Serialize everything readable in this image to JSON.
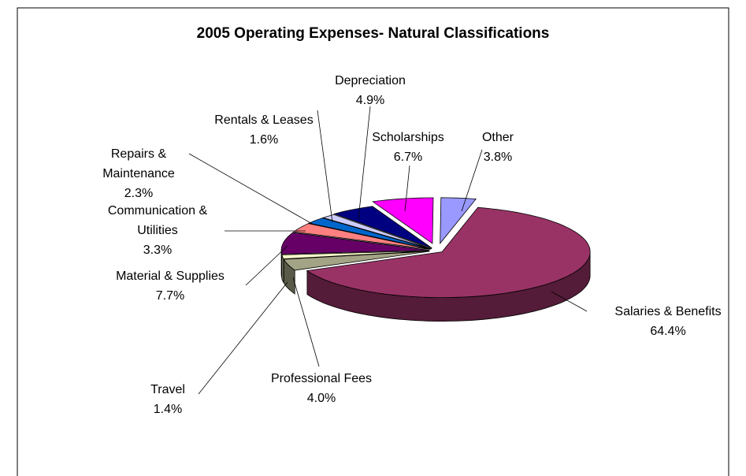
{
  "chart_data": {
    "type": "pie3d",
    "title": "2005 Operating Expenses- Natural Classifications",
    "categories": [
      "Salaries & Benefits",
      "Professional Fees",
      "Travel",
      "Material & Supplies",
      "Communication & Utilities",
      "Repairs & Maintenance",
      "Rentals & Leases",
      "Depreciation",
      "Scholarships",
      "Other"
    ],
    "values": [
      64.4,
      4.0,
      1.4,
      7.7,
      3.3,
      2.3,
      1.6,
      4.9,
      6.7,
      3.8
    ],
    "value_labels": [
      "64.4%",
      "4.0%",
      "1.4%",
      "7.7%",
      "3.3%",
      "2.3%",
      "1.6%",
      "4.9%",
      "6.7%",
      "3.8%"
    ],
    "colors": [
      "#993366",
      "#a3a385",
      "#ffffcc",
      "#660066",
      "#ff8080",
      "#0066cc",
      "#ccccff",
      "#000080",
      "#ff00ff",
      "#9999ff"
    ]
  }
}
